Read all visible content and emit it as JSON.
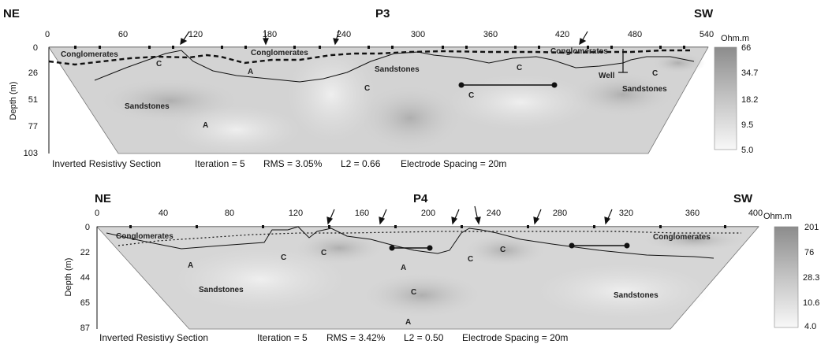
{
  "sections": [
    {
      "id": "p3",
      "title": "P3",
      "left_label": "NE",
      "right_label": "SW",
      "x_ticks": [
        "0",
        "60",
        "120",
        "180",
        "240",
        "300",
        "360",
        "420",
        "480",
        "540"
      ],
      "depth_ticks": [
        "0",
        "26",
        "51",
        "77",
        "103"
      ],
      "depth_axis_label": "Depth (m)",
      "scale_unit": "Ohm.m",
      "scale_values": [
        "66",
        "34.7",
        "18.2",
        "9.5",
        "5.0"
      ],
      "caption": {
        "title": "Inverted Resistivy Section",
        "iteration": "Iteration = 5",
        "rms": "RMS = 3.05%",
        "l2": "L2 = 0.66",
        "spacing": "Electrode Spacing = 20m"
      },
      "labels": {
        "conglomerates_1": "Conglomerates",
        "conglomerates_2": "Conglomerates",
        "conglomerates_3": "Conglomerates",
        "sandstones_1": "Sandstones",
        "sandstones_2": "Sandstones",
        "sandstones_3": "Sandstones",
        "well": "Well",
        "c1": "C",
        "c2": "C",
        "c3": "C",
        "c4": "C",
        "c5": "C",
        "a1": "A",
        "a2": "A"
      }
    },
    {
      "id": "p4",
      "title": "P4",
      "left_label": "NE",
      "right_label": "SW",
      "x_ticks": [
        "0",
        "40",
        "80",
        "120",
        "160",
        "200",
        "240",
        "280",
        "320",
        "360",
        "400"
      ],
      "depth_ticks": [
        "0",
        "22",
        "44",
        "65",
        "87"
      ],
      "depth_axis_label": "Depth (m)",
      "scale_unit": "Ohm.m",
      "scale_values": [
        "201",
        "76",
        "28.3",
        "10.6",
        "4.0"
      ],
      "caption": {
        "title": "Inverted Resistivy Section",
        "iteration": "Iteration = 5",
        "rms": "RMS = 3.42%",
        "l2": "L2 = 0.50",
        "spacing": "Electrode Spacing = 20m"
      },
      "labels": {
        "conglomerates_1": "Conglomerates",
        "conglomerates_2": "Conglomerates",
        "sandstones_1": "Sandstones",
        "sandstones_2": "Sandstones",
        "c1": "C",
        "c2": "C",
        "c3": "C",
        "c4": "C",
        "c5": "C",
        "a1": "A",
        "a2": "A",
        "a3": "A"
      }
    }
  ],
  "colors": {
    "scale_top": "#8a8a8a",
    "scale_bottom": "#f7f7f7",
    "section_fill": "#d4d4d4",
    "line": "#111111"
  }
}
